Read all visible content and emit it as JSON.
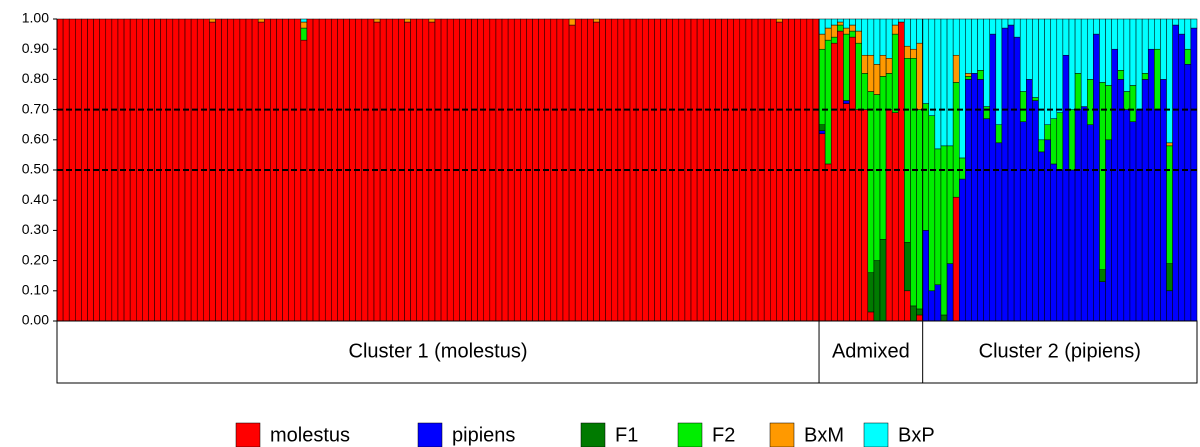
{
  "chart_data": {
    "type": "stacked-bar",
    "ylim": [
      0,
      1
    ],
    "yticks": [
      {
        "value": 0,
        "label": "0.00"
      },
      {
        "value": 0.1,
        "label": "0.10"
      },
      {
        "value": 0.2,
        "label": "0.20"
      },
      {
        "value": 0.3,
        "label": "0.30"
      },
      {
        "value": 0.4,
        "label": "0.40"
      },
      {
        "value": 0.5,
        "label": "0.50"
      },
      {
        "value": 0.6,
        "label": "0.60"
      },
      {
        "value": 0.7,
        "label": "0.70"
      },
      {
        "value": 0.8,
        "label": "0.80"
      },
      {
        "value": 0.9,
        "label": "0.90"
      },
      {
        "value": 1,
        "label": "1.00"
      }
    ],
    "reference_lines": [
      0.5,
      0.7
    ],
    "groups": [
      {
        "label": "Cluster 1 (molestus)",
        "size": 125
      },
      {
        "label": "Admixed",
        "size": 17
      },
      {
        "label": "Cluster 2 (pipiens)",
        "size": 45
      }
    ],
    "legend": "bottom",
    "series": [
      {
        "name": "molestus",
        "color": "#ff0000",
        "values": [
          1,
          1,
          1,
          1,
          1,
          1,
          1,
          1,
          1,
          1,
          1,
          1,
          1,
          1,
          1,
          1,
          1,
          1,
          1,
          1,
          1,
          1,
          1,
          1,
          1,
          0.99,
          1,
          1,
          1,
          1,
          1,
          1,
          1,
          0.99,
          1,
          1,
          1,
          1,
          1,
          1,
          0.93,
          1,
          1,
          1,
          1,
          1,
          1,
          1,
          1,
          1,
          1,
          1,
          0.99,
          1,
          1,
          1,
          1,
          0.99,
          1,
          1,
          1,
          0.99,
          1,
          1,
          1,
          1,
          1,
          1,
          1,
          1,
          1,
          1,
          1,
          1,
          1,
          1,
          1,
          1,
          1,
          1,
          1,
          1,
          1,
          1,
          0.98,
          1,
          1,
          1,
          0.99,
          1,
          1,
          1,
          1,
          1,
          1,
          1,
          1,
          1,
          1,
          1,
          1,
          1,
          1,
          1,
          1,
          1,
          1,
          1,
          1,
          1,
          1,
          1,
          1,
          1,
          1,
          1,
          1,
          1,
          0.99,
          1,
          1,
          1,
          1,
          1,
          1,
          0.62,
          0.52,
          0.92,
          0.96,
          0.72,
          0.94,
          0.7,
          0.7,
          0.03,
          0,
          0,
          0.7,
          0.69,
          0.99,
          0.1,
          0,
          0.02,
          0,
          0,
          0,
          0,
          0,
          0.41,
          0,
          0,
          0,
          0,
          0,
          0,
          0,
          0,
          0,
          0,
          0,
          0,
          0,
          0,
          0,
          0,
          0,
          0,
          0,
          0,
          0,
          0,
          0,
          0,
          0,
          0,
          0,
          0,
          0,
          0,
          0,
          0,
          0,
          0,
          0,
          0,
          0,
          0,
          0
        ]
      },
      {
        "name": "pipiens",
        "color": "#0000ff",
        "values": [
          0,
          0,
          0,
          0,
          0,
          0,
          0,
          0,
          0,
          0,
          0,
          0,
          0,
          0,
          0,
          0,
          0,
          0,
          0,
          0,
          0,
          0,
          0,
          0,
          0,
          0,
          0,
          0,
          0,
          0,
          0,
          0,
          0,
          0,
          0,
          0,
          0,
          0,
          0,
          0,
          0,
          0,
          0,
          0,
          0,
          0,
          0,
          0,
          0,
          0,
          0,
          0,
          0,
          0,
          0,
          0,
          0,
          0,
          0,
          0,
          0,
          0,
          0,
          0,
          0,
          0,
          0,
          0,
          0,
          0,
          0,
          0,
          0,
          0,
          0,
          0,
          0,
          0,
          0,
          0,
          0,
          0,
          0,
          0,
          0,
          0,
          0,
          0,
          0,
          0,
          0,
          0,
          0,
          0,
          0,
          0,
          0,
          0,
          0,
          0,
          0,
          0,
          0,
          0,
          0,
          0,
          0,
          0,
          0,
          0,
          0,
          0,
          0,
          0,
          0,
          0,
          0,
          0,
          0,
          0,
          0,
          0,
          0,
          0,
          0,
          0.01,
          0,
          0,
          0,
          0.01,
          0,
          0,
          0,
          0,
          0,
          0,
          0,
          0,
          0,
          0,
          0,
          0,
          0.3,
          0.1,
          0.12,
          0,
          0.19,
          0,
          0.47,
          0.8,
          0.82,
          0.8,
          0.67,
          0.95,
          0.59,
          0.97,
          0.98,
          0.94,
          0.66,
          0.8,
          0.73,
          0.56,
          0.6,
          0.52,
          0.5,
          0.88,
          0.5,
          0.7,
          0.71,
          0.65,
          0.95,
          0.13,
          0.6,
          0.9,
          0.8,
          0.7,
          0.66,
          0.7,
          0.8,
          0.9,
          0.7,
          0.8,
          0.1,
          0.98,
          0.95,
          0.85,
          0.97
        ]
      },
      {
        "name": "F1",
        "color": "#007a00",
        "values": [
          0,
          0,
          0,
          0,
          0,
          0,
          0,
          0,
          0,
          0,
          0,
          0,
          0,
          0,
          0,
          0,
          0,
          0,
          0,
          0,
          0,
          0,
          0,
          0,
          0,
          0,
          0,
          0,
          0,
          0,
          0,
          0,
          0,
          0,
          0,
          0,
          0,
          0,
          0,
          0,
          0,
          0,
          0,
          0,
          0,
          0,
          0,
          0,
          0,
          0,
          0,
          0,
          0,
          0,
          0,
          0,
          0,
          0,
          0,
          0,
          0,
          0,
          0,
          0,
          0,
          0,
          0,
          0,
          0,
          0,
          0,
          0,
          0,
          0,
          0,
          0,
          0,
          0,
          0,
          0,
          0,
          0,
          0,
          0,
          0,
          0,
          0,
          0,
          0,
          0,
          0,
          0,
          0,
          0,
          0,
          0,
          0,
          0,
          0,
          0,
          0,
          0,
          0,
          0,
          0,
          0,
          0,
          0,
          0,
          0,
          0,
          0,
          0,
          0,
          0,
          0,
          0,
          0,
          0,
          0,
          0,
          0,
          0,
          0,
          0,
          0.02,
          0,
          0,
          0,
          0,
          0,
          0,
          0,
          0.13,
          0.2,
          0.27,
          0,
          0,
          0,
          0.16,
          0.05,
          0.02,
          0,
          0,
          0,
          0.02,
          0,
          0,
          0,
          0,
          0,
          0,
          0,
          0,
          0,
          0,
          0,
          0,
          0,
          0,
          0,
          0,
          0,
          0,
          0,
          0,
          0,
          0,
          0,
          0,
          0,
          0.04,
          0,
          0,
          0,
          0,
          0,
          0,
          0,
          0,
          0,
          0,
          0.09,
          0,
          0,
          0,
          0
        ]
      },
      {
        "name": "F2",
        "color": "#00ee00",
        "values": [
          0,
          0,
          0,
          0,
          0,
          0,
          0,
          0,
          0,
          0,
          0,
          0,
          0,
          0,
          0,
          0,
          0,
          0,
          0,
          0,
          0,
          0,
          0,
          0,
          0,
          0,
          0,
          0,
          0,
          0,
          0,
          0,
          0,
          0,
          0,
          0,
          0,
          0,
          0,
          0,
          0.04,
          0,
          0,
          0,
          0,
          0,
          0,
          0,
          0,
          0,
          0,
          0,
          0,
          0,
          0,
          0,
          0,
          0,
          0,
          0,
          0,
          0,
          0,
          0,
          0,
          0,
          0,
          0,
          0,
          0,
          0,
          0,
          0,
          0,
          0,
          0,
          0,
          0,
          0,
          0,
          0,
          0,
          0,
          0,
          0,
          0,
          0,
          0,
          0,
          0,
          0,
          0,
          0,
          0,
          0,
          0,
          0,
          0,
          0,
          0,
          0,
          0,
          0,
          0,
          0,
          0,
          0,
          0,
          0,
          0,
          0,
          0,
          0,
          0,
          0,
          0,
          0,
          0,
          0,
          0,
          0,
          0,
          0,
          0,
          0,
          0.25,
          0.41,
          0.02,
          0.02,
          0.22,
          0.02,
          0.22,
          0.12,
          0.6,
          0.55,
          0.54,
          0.12,
          0.26,
          0,
          0.61,
          0.82,
          0.66,
          0.42,
          0.58,
          0.45,
          0.56,
          0.39,
          0.38,
          0.07,
          0.01,
          0,
          0.03,
          0.04,
          0,
          0.06,
          0,
          0,
          0,
          0.1,
          0,
          0.01,
          0.04,
          0.05,
          0.15,
          0.19,
          0,
          0.2,
          0.12,
          0,
          0.15,
          0,
          0.62,
          0.18,
          0,
          0.03,
          0.06,
          0.12,
          0,
          0.02,
          0,
          0.2,
          0,
          0.39,
          0,
          0,
          0.05,
          0
        ]
      },
      {
        "name": "BxM",
        "color": "#ff9900",
        "values": [
          0,
          0,
          0,
          0,
          0,
          0,
          0,
          0,
          0,
          0,
          0,
          0,
          0,
          0,
          0,
          0,
          0,
          0,
          0,
          0,
          0,
          0,
          0,
          0,
          0,
          0.01,
          0,
          0,
          0,
          0,
          0,
          0,
          0,
          0.01,
          0,
          0,
          0,
          0,
          0,
          0,
          0.02,
          0,
          0,
          0,
          0,
          0,
          0,
          0,
          0,
          0,
          0,
          0,
          0.01,
          0,
          0,
          0,
          0,
          0.01,
          0,
          0,
          0,
          0.01,
          0,
          0,
          0,
          0,
          0,
          0,
          0,
          0,
          0,
          0,
          0,
          0,
          0,
          0,
          0,
          0,
          0,
          0,
          0,
          0,
          0,
          0,
          0.02,
          0,
          0,
          0,
          0.01,
          0,
          0,
          0,
          0,
          0,
          0,
          0,
          0,
          0,
          0,
          0,
          0,
          0,
          0,
          0,
          0,
          0,
          0,
          0,
          0,
          0,
          0,
          0,
          0,
          0,
          0,
          0,
          0,
          0,
          0.01,
          0,
          0,
          0,
          0,
          0,
          0,
          0.05,
          0.04,
          0.04,
          0.01,
          0.02,
          0.02,
          0.04,
          0.06,
          0.12,
          0.1,
          0.07,
          0.05,
          0.03,
          0,
          0.04,
          0.03,
          0.22,
          0,
          0,
          0,
          0,
          0,
          0.09,
          0,
          0.01,
          0,
          0,
          0,
          0,
          0,
          0,
          0,
          0,
          0,
          0,
          0,
          0,
          0,
          0,
          0,
          0,
          0,
          0,
          0,
          0,
          0,
          0,
          0,
          0,
          0,
          0,
          0,
          0,
          0,
          0,
          0,
          0,
          0.01,
          0,
          0,
          0,
          0
        ]
      },
      {
        "name": "BxP",
        "color": "#00ffff",
        "values": [
          0,
          0,
          0,
          0,
          0,
          0,
          0,
          0,
          0,
          0,
          0,
          0,
          0,
          0,
          0,
          0,
          0,
          0,
          0,
          0,
          0,
          0,
          0,
          0,
          0,
          0,
          0,
          0,
          0,
          0,
          0,
          0,
          0,
          0,
          0,
          0,
          0,
          0,
          0,
          0,
          0.01,
          0,
          0,
          0,
          0,
          0,
          0,
          0,
          0,
          0,
          0,
          0,
          0,
          0,
          0,
          0,
          0,
          0,
          0,
          0,
          0,
          0,
          0,
          0,
          0,
          0,
          0,
          0,
          0,
          0,
          0,
          0,
          0,
          0,
          0,
          0,
          0,
          0,
          0,
          0,
          0,
          0,
          0,
          0,
          0,
          0,
          0,
          0,
          0,
          0,
          0,
          0,
          0,
          0,
          0,
          0,
          0,
          0,
          0,
          0,
          0,
          0,
          0,
          0,
          0,
          0,
          0,
          0,
          0,
          0,
          0,
          0,
          0,
          0,
          0,
          0,
          0,
          0,
          0,
          0,
          0,
          0,
          0,
          0,
          0,
          0.05,
          0.03,
          0.02,
          0.01,
          0.03,
          0.02,
          0.04,
          0.12,
          0.12,
          0.15,
          0.12,
          0.13,
          0.02,
          0.01,
          0.09,
          0.1,
          0.08,
          0.28,
          0.32,
          0.43,
          0.42,
          0.42,
          0.12,
          0.46,
          0.18,
          0.18,
          0.17,
          0.29,
          0.05,
          0.35,
          0.03,
          0.02,
          0.06,
          0.24,
          0.2,
          0.26,
          0.4,
          0.35,
          0.33,
          0.31,
          0.12,
          0.3,
          0.18,
          0.29,
          0.2,
          0.05,
          0.21,
          0.22,
          0.1,
          0.17,
          0.24,
          0.22,
          0.3,
          0.18,
          0.1,
          0.1,
          0.2,
          0.41,
          0.02,
          0.05,
          0.1,
          0.03
        ]
      }
    ]
  }
}
